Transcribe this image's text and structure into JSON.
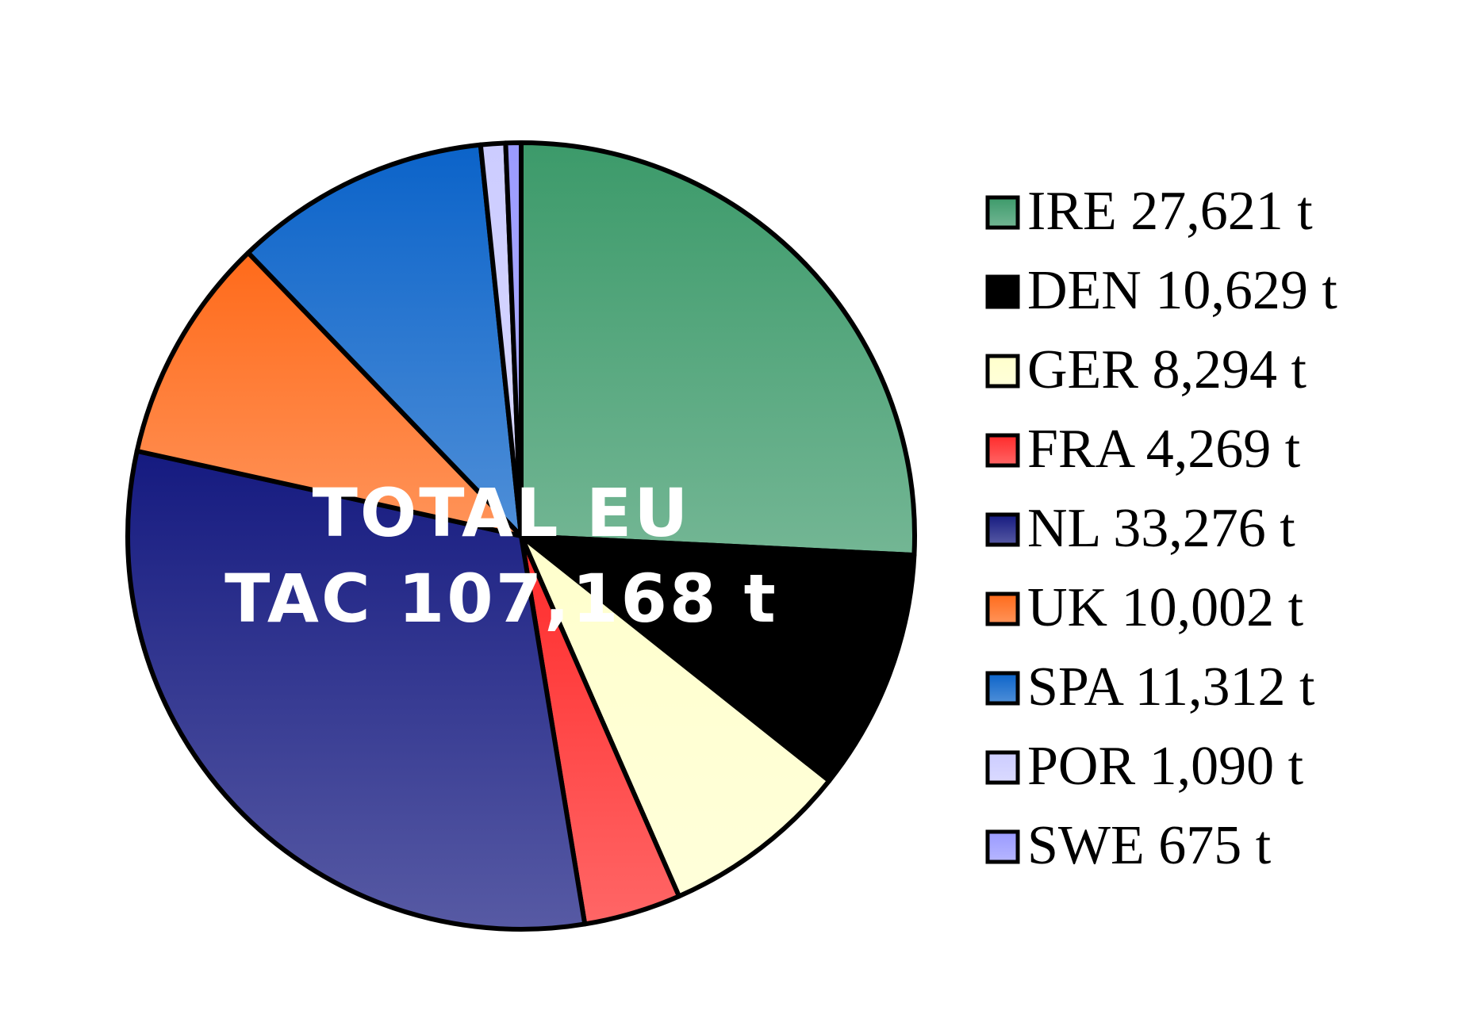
{
  "chart_data": {
    "type": "pie",
    "title": "",
    "center_label": [
      "TOTAL EU",
      "TAC 107,168 t"
    ],
    "legend_position": "right",
    "slices": [
      {
        "label": "IRE 27,621 t",
        "name": "IRE",
        "value": 27621,
        "color": "#3c9a6a"
      },
      {
        "label": "DEN 10,629 t",
        "name": "DEN",
        "value": 10629,
        "color": "#000000"
      },
      {
        "label": "GER 8,294 t",
        "name": "GER",
        "value": 8294,
        "color": "#ffffcc"
      },
      {
        "label": "FRA 4,269 t",
        "name": "FRA",
        "value": 4269,
        "color": "#ff2a2a"
      },
      {
        "label": "NL 33,276 t",
        "name": "NL",
        "value": 33276,
        "color": "#151a80"
      },
      {
        "label": "UK 10,002 t",
        "name": "UK",
        "value": 10002,
        "color": "#ff6a1a"
      },
      {
        "label": "SPA 11,312 t",
        "name": "SPA",
        "value": 11312,
        "color": "#0b63c9"
      },
      {
        "label": "POR 1,090 t",
        "name": "POR",
        "value": 1090,
        "color": "#ccccff"
      },
      {
        "label": "SWE 675 t",
        "name": "SWE",
        "value": 675,
        "color": "#9a9aff"
      }
    ]
  }
}
